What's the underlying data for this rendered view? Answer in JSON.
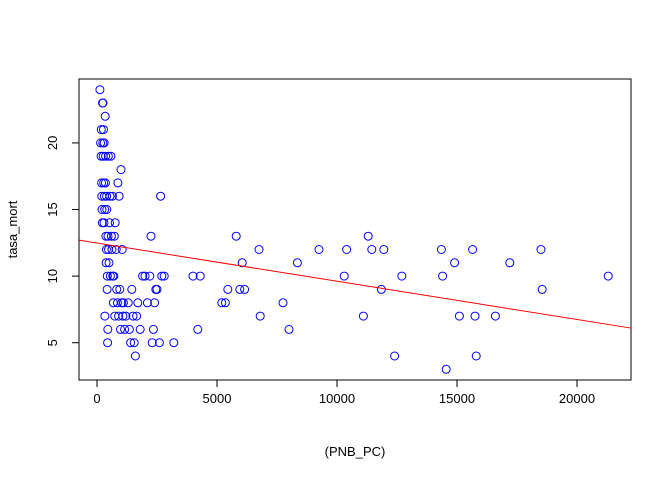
{
  "chart_data": {
    "type": "scatter",
    "xlabel": "(PNB_PC)",
    "ylabel": "tasa_mort",
    "xlim": [
      -750,
      22250
    ],
    "ylim": [
      2.2,
      24.8
    ],
    "xticks": [
      0,
      5000,
      10000,
      15000,
      20000
    ],
    "yticks": [
      5,
      10,
      15,
      20
    ],
    "point_color": "#0000ff",
    "line_color": "#ff0000",
    "regression_line": {
      "x": [
        -750,
        22250
      ],
      "y": [
        12.7,
        6.1
      ]
    },
    "points": [
      [
        120,
        24
      ],
      [
        150,
        20
      ],
      [
        170,
        19
      ],
      [
        180,
        21
      ],
      [
        190,
        17
      ],
      [
        200,
        16
      ],
      [
        210,
        15
      ],
      [
        220,
        14
      ],
      [
        230,
        23
      ],
      [
        240,
        20
      ],
      [
        250,
        23
      ],
      [
        260,
        19
      ],
      [
        270,
        21
      ],
      [
        280,
        17
      ],
      [
        290,
        14
      ],
      [
        300,
        20
      ],
      [
        310,
        16
      ],
      [
        320,
        15
      ],
      [
        330,
        7
      ],
      [
        340,
        22
      ],
      [
        350,
        17
      ],
      [
        360,
        19
      ],
      [
        370,
        13
      ],
      [
        380,
        11
      ],
      [
        390,
        12
      ],
      [
        400,
        16
      ],
      [
        410,
        15
      ],
      [
        420,
        9
      ],
      [
        430,
        10
      ],
      [
        440,
        5
      ],
      [
        450,
        6
      ],
      [
        460,
        13
      ],
      [
        470,
        19
      ],
      [
        480,
        12
      ],
      [
        500,
        11
      ],
      [
        520,
        14
      ],
      [
        540,
        16
      ],
      [
        560,
        10
      ],
      [
        580,
        19
      ],
      [
        600,
        13
      ],
      [
        620,
        12
      ],
      [
        640,
        16
      ],
      [
        660,
        10
      ],
      [
        680,
        8
      ],
      [
        700,
        10
      ],
      [
        720,
        13
      ],
      [
        740,
        7
      ],
      [
        760,
        14
      ],
      [
        800,
        12
      ],
      [
        820,
        9
      ],
      [
        850,
        8
      ],
      [
        870,
        17
      ],
      [
        900,
        7
      ],
      [
        920,
        16
      ],
      [
        950,
        9
      ],
      [
        980,
        6
      ],
      [
        1000,
        18
      ],
      [
        1030,
        8
      ],
      [
        1050,
        12
      ],
      [
        1080,
        7
      ],
      [
        1100,
        8
      ],
      [
        1150,
        6
      ],
      [
        1200,
        7
      ],
      [
        1300,
        8
      ],
      [
        1350,
        6
      ],
      [
        1400,
        5
      ],
      [
        1450,
        9
      ],
      [
        1500,
        7
      ],
      [
        1550,
        5
      ],
      [
        1600,
        4
      ],
      [
        1650,
        7
      ],
      [
        1700,
        8
      ],
      [
        1800,
        6
      ],
      [
        1900,
        10
      ],
      [
        2000,
        10
      ],
      [
        2100,
        8
      ],
      [
        2200,
        10
      ],
      [
        2250,
        13
      ],
      [
        2300,
        5
      ],
      [
        2350,
        6
      ],
      [
        2400,
        8
      ],
      [
        2450,
        9
      ],
      [
        2500,
        9
      ],
      [
        2600,
        5
      ],
      [
        2650,
        16
      ],
      [
        2700,
        10
      ],
      [
        2800,
        10
      ],
      [
        3200,
        5
      ],
      [
        4000,
        10
      ],
      [
        4200,
        6
      ],
      [
        4300,
        10
      ],
      [
        5200,
        8
      ],
      [
        5350,
        8
      ],
      [
        5450,
        9
      ],
      [
        5800,
        13
      ],
      [
        5950,
        9
      ],
      [
        6050,
        11
      ],
      [
        6150,
        9
      ],
      [
        6750,
        12
      ],
      [
        6800,
        7
      ],
      [
        7750,
        8
      ],
      [
        8000,
        6
      ],
      [
        8350,
        11
      ],
      [
        9250,
        12
      ],
      [
        10300,
        10
      ],
      [
        10400,
        12
      ],
      [
        11100,
        7
      ],
      [
        11300,
        13
      ],
      [
        11450,
        12
      ],
      [
        11850,
        9
      ],
      [
        11950,
        12
      ],
      [
        12400,
        4
      ],
      [
        12700,
        10
      ],
      [
        14350,
        12
      ],
      [
        14400,
        10
      ],
      [
        14550,
        3
      ],
      [
        14900,
        11
      ],
      [
        15100,
        7
      ],
      [
        15650,
        12
      ],
      [
        15750,
        7
      ],
      [
        15800,
        4
      ],
      [
        16600,
        7
      ],
      [
        17200,
        11
      ],
      [
        18500,
        12
      ],
      [
        18550,
        9
      ],
      [
        21300,
        10
      ]
    ]
  }
}
